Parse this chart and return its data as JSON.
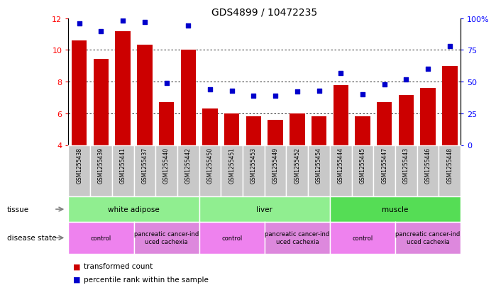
{
  "title": "GDS4899 / 10472235",
  "samples": [
    "GSM1255438",
    "GSM1255439",
    "GSM1255441",
    "GSM1255437",
    "GSM1255440",
    "GSM1255442",
    "GSM1255450",
    "GSM1255451",
    "GSM1255453",
    "GSM1255449",
    "GSM1255452",
    "GSM1255454",
    "GSM1255444",
    "GSM1255445",
    "GSM1255447",
    "GSM1255443",
    "GSM1255446",
    "GSM1255448"
  ],
  "transformed_count": [
    10.6,
    9.45,
    11.2,
    10.35,
    6.7,
    10.0,
    6.3,
    6.0,
    5.8,
    5.6,
    6.0,
    5.8,
    7.8,
    5.8,
    6.7,
    7.15,
    7.6,
    9.0
  ],
  "percentile_rank": [
    96,
    90,
    98,
    97,
    49,
    94,
    44,
    43,
    39,
    39,
    42,
    43,
    57,
    40,
    48,
    52,
    60,
    78
  ],
  "ylim_left": [
    4,
    12
  ],
  "ylim_right": [
    0,
    100
  ],
  "yticks_left": [
    4,
    6,
    8,
    10,
    12
  ],
  "yticks_right": [
    0,
    25,
    50,
    75,
    100
  ],
  "bar_color": "#cc0000",
  "dot_color": "#0000cc",
  "tissue_groups": [
    {
      "label": "white adipose",
      "start": 0,
      "end": 6,
      "color": "#90ee90"
    },
    {
      "label": "liver",
      "start": 6,
      "end": 12,
      "color": "#90ee90"
    },
    {
      "label": "muscle",
      "start": 12,
      "end": 18,
      "color": "#55dd55"
    }
  ],
  "disease_groups": [
    {
      "label": "control",
      "start": 0,
      "end": 3,
      "color": "#ee82ee"
    },
    {
      "label": "pancreatic cancer-ind\nuced cachexia",
      "start": 3,
      "end": 6,
      "color": "#dd88dd"
    },
    {
      "label": "control",
      "start": 6,
      "end": 9,
      "color": "#ee82ee"
    },
    {
      "label": "pancreatic cancer-ind\nuced cachexia",
      "start": 9,
      "end": 12,
      "color": "#dd88dd"
    },
    {
      "label": "control",
      "start": 12,
      "end": 15,
      "color": "#ee82ee"
    },
    {
      "label": "pancreatic cancer-ind\nuced cachexia",
      "start": 15,
      "end": 18,
      "color": "#dd88dd"
    }
  ],
  "legend_bar_color": "#cc0000",
  "legend_dot_color": "#0000cc",
  "legend_bar_label": "transformed count",
  "legend_dot_label": "percentile rank within the sample",
  "tissue_label": "tissue",
  "disease_label": "disease state",
  "sample_bg_color": "#c8c8c8"
}
